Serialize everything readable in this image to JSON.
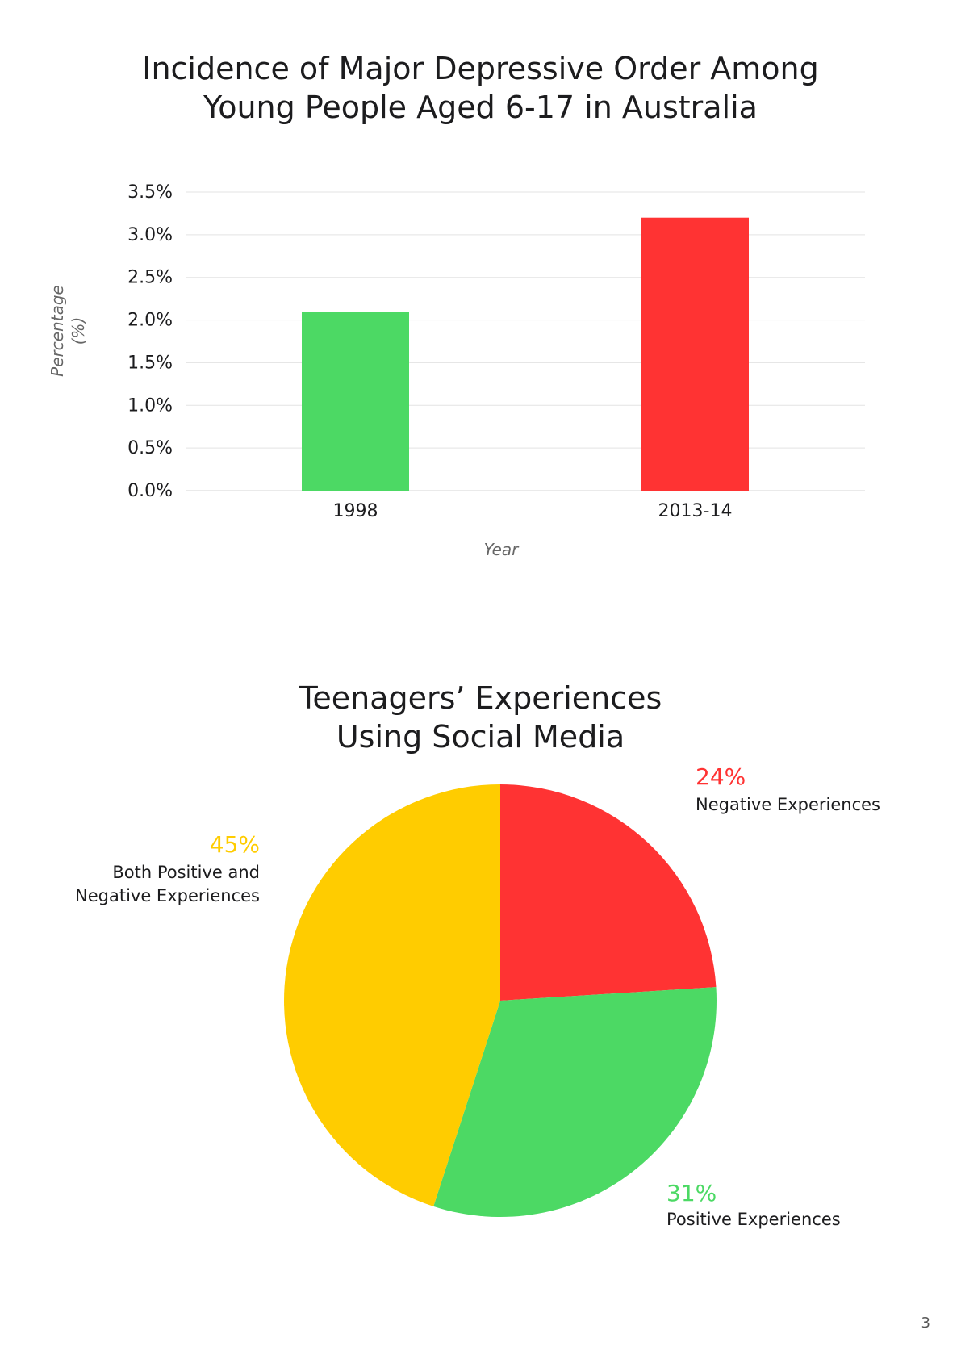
{
  "page": {
    "number": "3"
  },
  "chart_data": [
    {
      "type": "bar",
      "title": "Incidence of Major Depressive Order Among Young People Aged 6-17 in Australia",
      "xlabel": "Year",
      "ylabel": "Percentage (%)",
      "categories": [
        "1998",
        "2013-14"
      ],
      "values": [
        2.1,
        3.2
      ],
      "colors": [
        "#4cd964",
        "#ff3333"
      ],
      "ylim": [
        0,
        3.5
      ],
      "yticks": [
        "0.0%",
        "0.5%",
        "1.0%",
        "1.5%",
        "2.0%",
        "2.5%",
        "3.0%",
        "3.5%"
      ],
      "grid": true
    },
    {
      "type": "pie",
      "title": "Teenagers’ Experiences Using Social Media",
      "slices": [
        {
          "label": "Negative Experiences",
          "value": 24,
          "percent_label": "24%",
          "color": "#ff3333"
        },
        {
          "label": "Positive Experiences",
          "value": 31,
          "percent_label": "31%",
          "color": "#4cd964"
        },
        {
          "label": "Both Positive and Negative Experiences",
          "value": 45,
          "percent_label": "45%",
          "color": "#ffcc00"
        }
      ]
    }
  ]
}
